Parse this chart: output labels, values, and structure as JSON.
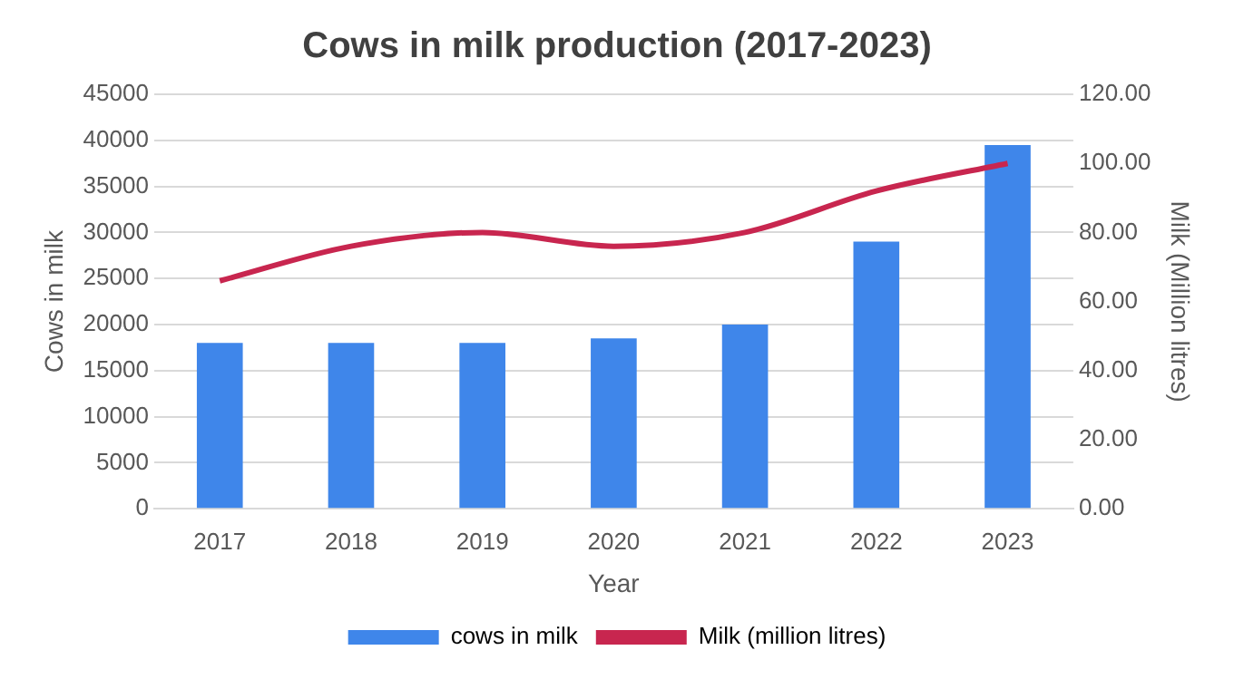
{
  "chart_data": {
    "type": "bar",
    "title": "Cows in milk production (2017-2023)",
    "xlabel": "Year",
    "ylabel": "Cows in milk",
    "y2label": "Milk (Million litres)",
    "categories": [
      "2017",
      "2018",
      "2019",
      "2020",
      "2021",
      "2022",
      "2023"
    ],
    "series": [
      {
        "name": "cows in milk",
        "color": "#3f86ea",
        "values": [
          18000,
          18000,
          18000,
          18500,
          20000,
          29000,
          39500
        ]
      },
      {
        "name": "Milk (million litres)",
        "type": "line",
        "axis": "y2",
        "color": "#c8264f",
        "values": [
          66,
          76,
          80,
          76,
          80,
          92,
          100
        ]
      }
    ],
    "ylim": [
      0,
      45000
    ],
    "yticks": [
      0,
      5000,
      10000,
      15000,
      20000,
      25000,
      30000,
      35000,
      40000,
      45000
    ],
    "y2lim": [
      0,
      120
    ],
    "y2ticks": [
      {
        "value": 0,
        "label": "0.00"
      },
      {
        "value": 20,
        "label": "20.00"
      },
      {
        "value": 40,
        "label": "40.00"
      },
      {
        "value": 60,
        "label": "60.00"
      },
      {
        "value": 80,
        "label": "80.00"
      },
      {
        "value": 100,
        "label": "100.00"
      },
      {
        "value": 120,
        "label": "120.00"
      }
    ],
    "grid": "y",
    "legend": "bottom",
    "marker": "none"
  }
}
